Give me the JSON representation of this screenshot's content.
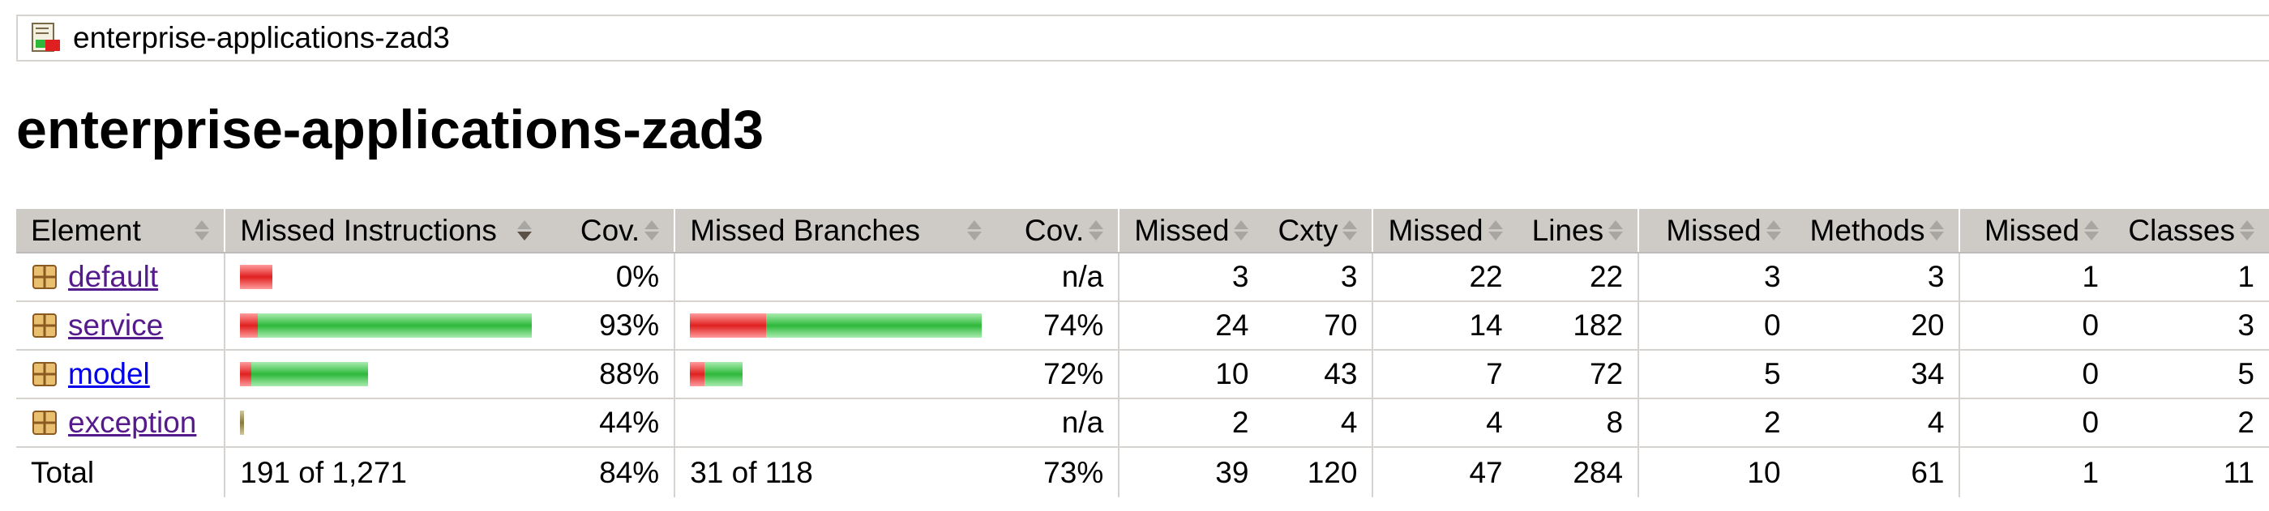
{
  "breadcrumb": {
    "label": "enterprise-applications-zad3"
  },
  "page": {
    "title": "enterprise-applications-zad3"
  },
  "table": {
    "headers": {
      "element": "Element",
      "missed_instructions": "Missed Instructions",
      "cov_instructions": "Cov.",
      "missed_branches": "Missed Branches",
      "cov_branches": "Cov.",
      "missed_cxty": "Missed",
      "cxty": "Cxty",
      "missed_lines": "Missed",
      "lines": "Lines",
      "missed_methods": "Missed",
      "methods": "Methods",
      "missed_classes": "Missed",
      "classes": "Classes"
    },
    "rows": [
      {
        "element": "default",
        "instr_bar": {
          "missed": 0.11,
          "covered": 0.0
        },
        "cov_instr": "0%",
        "branch_bar": null,
        "cov_branch": "n/a",
        "missed_cxty": "3",
        "cxty": "3",
        "missed_lines": "22",
        "lines": "22",
        "missed_methods": "3",
        "methods": "3",
        "missed_classes": "1",
        "classes": "1"
      },
      {
        "element": "service",
        "instr_bar": {
          "missed": 0.06,
          "covered": 0.94
        },
        "cov_instr": "93%",
        "branch_bar": {
          "missed": 0.26,
          "covered": 0.74
        },
        "cov_branch": "74%",
        "missed_cxty": "24",
        "cxty": "70",
        "missed_lines": "14",
        "lines": "182",
        "missed_methods": "0",
        "methods": "20",
        "missed_classes": "0",
        "classes": "3"
      },
      {
        "element": "model",
        "instr_bar": {
          "missed": 0.04,
          "covered": 0.4
        },
        "cov_instr": "88%",
        "branch_bar": {
          "missed": 0.05,
          "covered": 0.13
        },
        "cov_branch": "72%",
        "missed_cxty": "10",
        "cxty": "43",
        "missed_lines": "7",
        "lines": "72",
        "missed_methods": "5",
        "methods": "34",
        "missed_classes": "0",
        "classes": "5"
      },
      {
        "element": "exception",
        "instr_bar": {
          "missed": 0.01,
          "covered": 0.01
        },
        "cov_instr": "44%",
        "branch_bar": null,
        "cov_branch": "n/a",
        "missed_cxty": "2",
        "cxty": "4",
        "missed_lines": "4",
        "lines": "8",
        "missed_methods": "2",
        "methods": "4",
        "missed_classes": "0",
        "classes": "2"
      }
    ],
    "total": {
      "label": "Total",
      "missed_instructions": "191 of 1,271",
      "cov_instr": "84%",
      "missed_branches": "31 of 118",
      "cov_branch": "73%",
      "missed_cxty": "39",
      "cxty": "120",
      "missed_lines": "47",
      "lines": "284",
      "missed_methods": "10",
      "methods": "61",
      "missed_classes": "1",
      "classes": "11"
    }
  },
  "colors": {
    "missed": "#e02020",
    "covered": "#2eb83a",
    "header_bg": "#cecbc6",
    "link_visited": "#551a8b",
    "link": "#0000ee"
  },
  "icons": {
    "breadcrumb": "report-icon",
    "package": "package-icon"
  }
}
